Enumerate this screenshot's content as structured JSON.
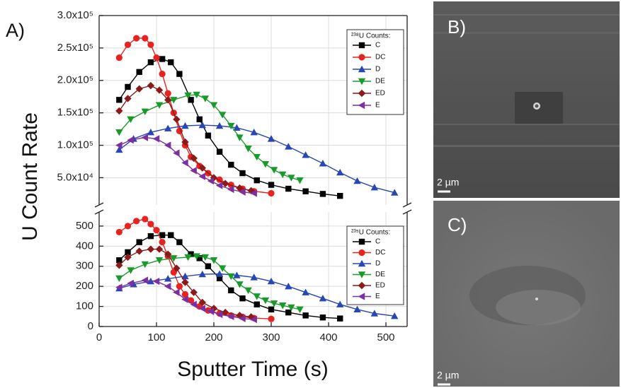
{
  "panels": [
    "A)",
    "B)",
    "C)"
  ],
  "scale_bars": [
    "2 µm",
    "2 µm"
  ],
  "chart_data": [
    {
      "type": "line",
      "ylabel": "U Count Rate",
      "legend_title": "²³⁸U Counts:",
      "grid": true,
      "xlim": [
        0,
        537
      ],
      "ylim": [
        8000,
        300000
      ],
      "yticks": [
        {
          "value": 50000,
          "label": "5.0x10⁴"
        },
        {
          "value": 100000,
          "label": "1.0x10⁵"
        },
        {
          "value": 150000,
          "label": "1.5x10⁵"
        },
        {
          "value": 200000,
          "label": "2.0x10⁵"
        },
        {
          "value": 250000,
          "label": "2.5x10⁵"
        },
        {
          "value": 300000,
          "label": "3.0x10⁵"
        }
      ],
      "series": [
        {
          "name": "C",
          "color": "#000000",
          "marker": "square",
          "x": [
            35,
            50,
            70,
            90,
            110,
            125,
            140,
            160,
            175,
            190,
            210,
            230,
            250,
            275,
            300,
            330,
            360,
            390,
            420
          ],
          "values": [
            170000,
            190000,
            213000,
            228000,
            233000,
            228000,
            210000,
            170000,
            140000,
            115000,
            90000,
            70000,
            57000,
            46000,
            39000,
            33000,
            29000,
            25000,
            22000
          ]
        },
        {
          "name": "DC",
          "color": "#e8231f",
          "marker": "circle",
          "x": [
            35,
            50,
            65,
            80,
            90,
            100,
            110,
            120,
            130,
            140,
            150,
            160,
            175,
            190,
            210,
            230,
            250,
            270,
            300
          ],
          "values": [
            235000,
            255000,
            265000,
            265000,
            255000,
            235000,
            210000,
            180000,
            150000,
            122000,
            100000,
            82000,
            68000,
            57000,
            47000,
            39000,
            33000,
            29000,
            26000
          ]
        },
        {
          "name": "D",
          "color": "#2846b4",
          "marker": "tri-up",
          "x": [
            35,
            60,
            90,
            120,
            150,
            180,
            210,
            240,
            270,
            300,
            330,
            360,
            390,
            420,
            450,
            480,
            515
          ],
          "values": [
            93000,
            110000,
            120000,
            126000,
            130000,
            131000,
            130000,
            127000,
            120000,
            110000,
            98000,
            85000,
            72000,
            58000,
            45000,
            35000,
            27000
          ]
        },
        {
          "name": "DE",
          "color": "#1a9a2a",
          "marker": "tri-down",
          "x": [
            35,
            55,
            80,
            105,
            130,
            155,
            170,
            185,
            200,
            215,
            230,
            245,
            260,
            275,
            290,
            305,
            320,
            335,
            350
          ],
          "values": [
            120000,
            140000,
            152000,
            162000,
            170000,
            177000,
            178000,
            172000,
            162000,
            147000,
            130000,
            112000,
            95000,
            82000,
            71000,
            62000,
            55000,
            50000,
            46000
          ]
        },
        {
          "name": "ED",
          "color": "#8b1a1a",
          "marker": "diamond",
          "x": [
            35,
            50,
            70,
            90,
            105,
            120,
            135,
            150,
            165,
            180,
            200,
            220,
            245,
            265
          ],
          "values": [
            153000,
            172000,
            187000,
            192000,
            185000,
            170000,
            140000,
            105000,
            80000,
            65000,
            50000,
            41000,
            34000,
            30000
          ]
        },
        {
          "name": "E",
          "color": "#7b2fa0",
          "marker": "tri-left",
          "x": [
            35,
            55,
            80,
            100,
            120,
            135,
            150,
            165,
            180,
            195,
            210,
            230,
            250,
            270
          ],
          "values": [
            100000,
            108000,
            112000,
            110000,
            100000,
            88000,
            73000,
            61000,
            52000,
            45000,
            38000,
            32000,
            28000,
            26000
          ]
        }
      ]
    },
    {
      "type": "line",
      "xlabel": "Sputter Time (s)",
      "legend_title": "²³⁵U Counts:",
      "grid": true,
      "xlim": [
        0,
        537
      ],
      "ylim": [
        0,
        570
      ],
      "xticks": [
        0,
        100,
        200,
        300,
        400,
        500
      ],
      "yticks": [
        0,
        100,
        200,
        300,
        400,
        500
      ],
      "series": [
        {
          "name": "C",
          "color": "#000000",
          "marker": "square",
          "x": [
            35,
            50,
            70,
            90,
            110,
            125,
            140,
            160,
            175,
            190,
            210,
            230,
            250,
            275,
            300,
            330,
            360,
            390,
            420
          ],
          "values": [
            330,
            370,
            420,
            450,
            455,
            455,
            420,
            360,
            340,
            300,
            240,
            180,
            140,
            110,
            85,
            70,
            55,
            45,
            40
          ]
        },
        {
          "name": "DC",
          "color": "#e8231f",
          "marker": "circle",
          "x": [
            35,
            50,
            65,
            80,
            90,
            100,
            110,
            120,
            130,
            140,
            150,
            160,
            175,
            190,
            210,
            230,
            250,
            270,
            300
          ],
          "values": [
            470,
            500,
            525,
            535,
            510,
            480,
            420,
            350,
            270,
            200,
            160,
            130,
            100,
            80,
            65,
            55,
            48,
            42,
            38
          ]
        },
        {
          "name": "D",
          "color": "#2846b4",
          "marker": "tri-up",
          "x": [
            35,
            60,
            90,
            120,
            150,
            180,
            210,
            240,
            270,
            300,
            330,
            360,
            390,
            420,
            450,
            480,
            515
          ],
          "values": [
            190,
            210,
            225,
            238,
            250,
            260,
            262,
            255,
            245,
            225,
            200,
            170,
            140,
            110,
            85,
            65,
            52
          ]
        },
        {
          "name": "DE",
          "color": "#1a9a2a",
          "marker": "tri-down",
          "x": [
            35,
            55,
            80,
            105,
            130,
            155,
            170,
            185,
            200,
            215,
            230,
            245,
            260,
            275,
            290,
            305,
            320,
            335,
            350
          ],
          "values": [
            240,
            280,
            310,
            330,
            340,
            345,
            350,
            345,
            330,
            290,
            250,
            210,
            180,
            150,
            130,
            115,
            105,
            95,
            85
          ]
        },
        {
          "name": "ED",
          "color": "#8b1a1a",
          "marker": "diamond",
          "x": [
            35,
            50,
            70,
            90,
            105,
            120,
            135,
            150,
            165,
            180,
            200,
            220,
            245,
            265
          ],
          "values": [
            305,
            345,
            375,
            385,
            385,
            360,
            290,
            220,
            170,
            120,
            90,
            70,
            55,
            48
          ]
        },
        {
          "name": "E",
          "color": "#7b2fa0",
          "marker": "tri-left",
          "x": [
            35,
            55,
            80,
            100,
            120,
            135,
            150,
            165,
            180,
            195,
            210,
            230,
            250,
            270
          ],
          "values": [
            195,
            215,
            230,
            225,
            200,
            170,
            135,
            110,
            90,
            75,
            60,
            50,
            40,
            35
          ]
        }
      ]
    }
  ]
}
